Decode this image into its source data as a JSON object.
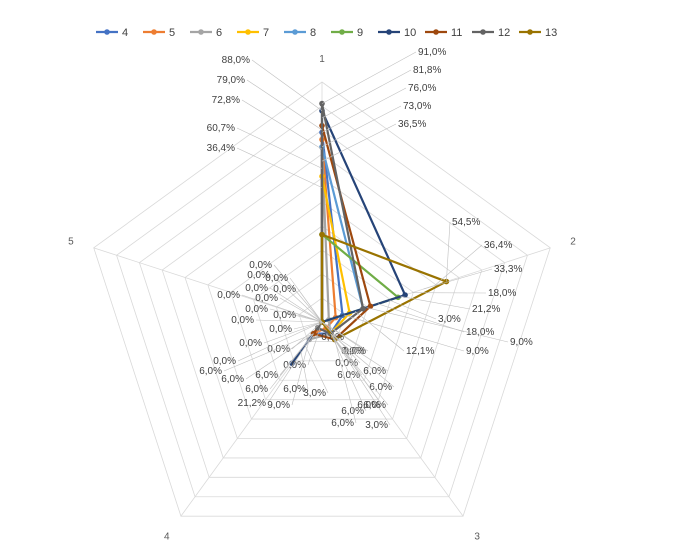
{
  "chart_data": {
    "type": "radar",
    "title": "",
    "axes": [
      "1",
      "2",
      "3",
      "4",
      "5"
    ],
    "rmax": 100,
    "grid_rings": 10,
    "grid": true,
    "legend": "top",
    "series": [
      {
        "name": "4",
        "color": "#4472C4",
        "values": [
          79.0,
          9.0,
          6.0,
          6.0,
          0.0
        ]
      },
      {
        "name": "5",
        "color": "#ED7D31",
        "values": [
          76.0,
          6.0,
          3.0,
          6.0,
          0.0
        ]
      },
      {
        "name": "6",
        "color": "#A5A5A5",
        "values": [
          72.8,
          3.0,
          6.0,
          9.0,
          0.0
        ]
      },
      {
        "name": "7",
        "color": "#FFC000",
        "values": [
          60.7,
          12.1,
          6.0,
          0.0,
          0.0
        ]
      },
      {
        "name": "8",
        "color": "#5B9BD5",
        "values": [
          73.0,
          18.0,
          0.0,
          0.0,
          0.0
        ]
      },
      {
        "name": "9",
        "color": "#70AD47",
        "values": [
          36.5,
          33.3,
          0.0,
          0.0,
          0.0
        ]
      },
      {
        "name": "10",
        "color": "#264478",
        "values": [
          88.0,
          36.4,
          0.0,
          21.2,
          0.0
        ]
      },
      {
        "name": "11",
        "color": "#9E480E",
        "values": [
          81.8,
          21.2,
          9.0,
          6.0,
          0.0
        ]
      },
      {
        "name": "12",
        "color": "#636363",
        "values": [
          91.0,
          18.0,
          6.0,
          3.0,
          0.0
        ]
      },
      {
        "name": "13",
        "color": "#997300",
        "values": [
          36.4,
          54.5,
          9.0,
          0.0,
          0.0
        ]
      }
    ],
    "data_labels": [
      "91,0%",
      "81,8%",
      "76,0%",
      "73,0%",
      "36,5%",
      "88,0%",
      "79,0%",
      "72,8%",
      "60,7%",
      "36,4%",
      "54,5%",
      "36,4%",
      "33,3%",
      "18,0%",
      "21,2%",
      "3,0%",
      "18,0%",
      "9,0%",
      "12,1%",
      "9,0%",
      "0,0%",
      "0,0%",
      "0,0%",
      "0,0%",
      "0,0%",
      "0,0%",
      "0,0%",
      "0,0%",
      "0,0%",
      "0,0%",
      "0,0%",
      "0,0%",
      "0,0%",
      "0,0%",
      "0,0%",
      "0,0%",
      "0,0%",
      "0,0%",
      "0,0%",
      "6,0%",
      "6,0%",
      "6,0%",
      "6,0%",
      "6,0%",
      "6,0%",
      "6,0%",
      "6,0%",
      "21,2%",
      "9,0%",
      "3,0%",
      "6,0%",
      "6,0%",
      "3,0%",
      "6,0%",
      "6,0%"
    ]
  }
}
